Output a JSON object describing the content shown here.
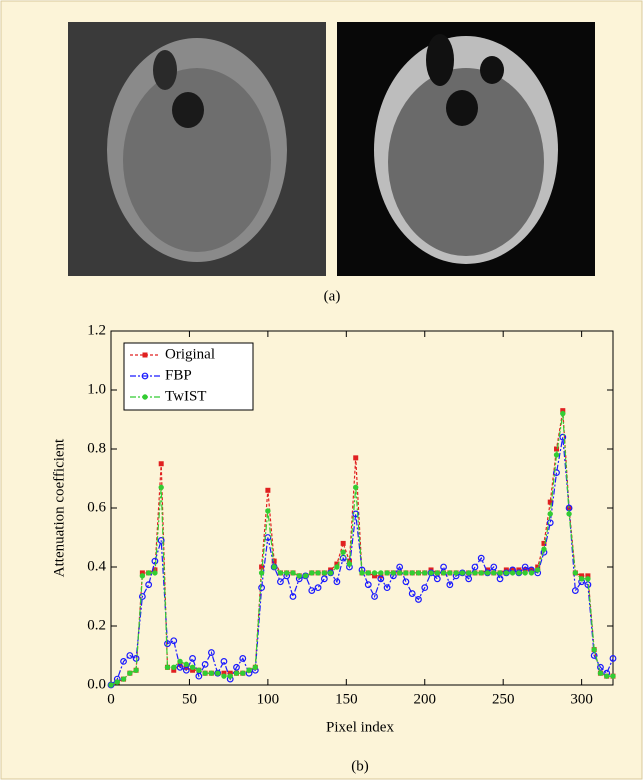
{
  "figure": {
    "caption_a": "(a)",
    "caption_b": "(b)"
  },
  "chart_data": {
    "type": "line",
    "xlabel": "Pixel index",
    "ylabel": "Attenuation coefficient",
    "xlim": [
      0,
      320
    ],
    "xticks": [
      0,
      50,
      100,
      150,
      200,
      250,
      300
    ],
    "ylim": [
      0,
      1.2
    ],
    "yticks": [
      {
        "value": 0,
        "label": "0.0"
      },
      0.2,
      0.4,
      0.6,
      0.8,
      {
        "value": 1,
        "label": "1.0"
      },
      1.2
    ],
    "legend": "upper left",
    "x": [
      0,
      4,
      8,
      12,
      16,
      20,
      24,
      28,
      32,
      36,
      40,
      44,
      48,
      52,
      56,
      60,
      64,
      68,
      72,
      76,
      80,
      84,
      88,
      92,
      96,
      100,
      104,
      108,
      112,
      116,
      120,
      124,
      128,
      132,
      136,
      140,
      144,
      148,
      152,
      156,
      160,
      164,
      168,
      172,
      176,
      180,
      184,
      188,
      192,
      196,
      200,
      204,
      208,
      212,
      216,
      220,
      224,
      228,
      232,
      236,
      240,
      244,
      248,
      252,
      256,
      260,
      264,
      268,
      272,
      276,
      280,
      284,
      288,
      292,
      296,
      300,
      304,
      308,
      312,
      316,
      320
    ],
    "series": [
      {
        "name": "Original",
        "color": "#e02020",
        "marker": "square",
        "values": [
          0.0,
          0.01,
          0.02,
          0.04,
          0.05,
          0.38,
          0.38,
          0.39,
          0.75,
          0.06,
          0.05,
          0.07,
          0.06,
          0.05,
          0.05,
          0.04,
          0.04,
          0.04,
          0.04,
          0.04,
          0.04,
          0.04,
          0.05,
          0.06,
          0.4,
          0.66,
          0.42,
          0.38,
          0.38,
          0.38,
          0.37,
          0.37,
          0.38,
          0.38,
          0.38,
          0.39,
          0.41,
          0.48,
          0.42,
          0.77,
          0.38,
          0.38,
          0.37,
          0.37,
          0.38,
          0.38,
          0.38,
          0.38,
          0.38,
          0.38,
          0.38,
          0.39,
          0.38,
          0.38,
          0.38,
          0.38,
          0.38,
          0.38,
          0.38,
          0.38,
          0.39,
          0.38,
          0.38,
          0.39,
          0.39,
          0.39,
          0.39,
          0.39,
          0.4,
          0.48,
          0.62,
          0.8,
          0.93,
          0.6,
          0.38,
          0.37,
          0.37,
          0.12,
          0.04,
          0.03,
          0.03
        ]
      },
      {
        "name": "FBP",
        "color": "#1a1aff",
        "marker": "open-circle",
        "values": [
          0.0,
          0.02,
          0.08,
          0.1,
          0.09,
          0.3,
          0.34,
          0.42,
          0.49,
          0.14,
          0.15,
          0.06,
          0.05,
          0.09,
          0.03,
          0.07,
          0.11,
          0.04,
          0.08,
          0.02,
          0.06,
          0.09,
          0.04,
          0.05,
          0.33,
          0.5,
          0.4,
          0.35,
          0.37,
          0.3,
          0.36,
          0.37,
          0.32,
          0.33,
          0.36,
          0.38,
          0.35,
          0.43,
          0.4,
          0.58,
          0.39,
          0.34,
          0.3,
          0.36,
          0.33,
          0.37,
          0.4,
          0.35,
          0.31,
          0.29,
          0.33,
          0.38,
          0.36,
          0.4,
          0.34,
          0.37,
          0.38,
          0.36,
          0.4,
          0.43,
          0.38,
          0.4,
          0.36,
          0.38,
          0.39,
          0.38,
          0.4,
          0.39,
          0.38,
          0.45,
          0.55,
          0.72,
          0.84,
          0.6,
          0.32,
          0.35,
          0.34,
          0.1,
          0.06,
          0.04,
          0.09
        ]
      },
      {
        "name": "TwIST",
        "color": "#33cc33",
        "marker": "circle",
        "values": [
          0.0,
          0.01,
          0.02,
          0.04,
          0.05,
          0.37,
          0.38,
          0.38,
          0.67,
          0.06,
          0.06,
          0.08,
          0.07,
          0.06,
          0.05,
          0.04,
          0.04,
          0.04,
          0.03,
          0.03,
          0.04,
          0.04,
          0.05,
          0.06,
          0.38,
          0.59,
          0.4,
          0.38,
          0.38,
          0.38,
          0.37,
          0.37,
          0.38,
          0.38,
          0.38,
          0.38,
          0.4,
          0.45,
          0.41,
          0.67,
          0.38,
          0.38,
          0.38,
          0.38,
          0.38,
          0.38,
          0.38,
          0.38,
          0.38,
          0.38,
          0.38,
          0.38,
          0.38,
          0.38,
          0.38,
          0.38,
          0.38,
          0.38,
          0.38,
          0.38,
          0.38,
          0.38,
          0.38,
          0.38,
          0.38,
          0.38,
          0.38,
          0.38,
          0.39,
          0.46,
          0.58,
          0.78,
          0.92,
          0.58,
          0.38,
          0.36,
          0.36,
          0.12,
          0.04,
          0.03,
          0.03
        ]
      }
    ]
  }
}
